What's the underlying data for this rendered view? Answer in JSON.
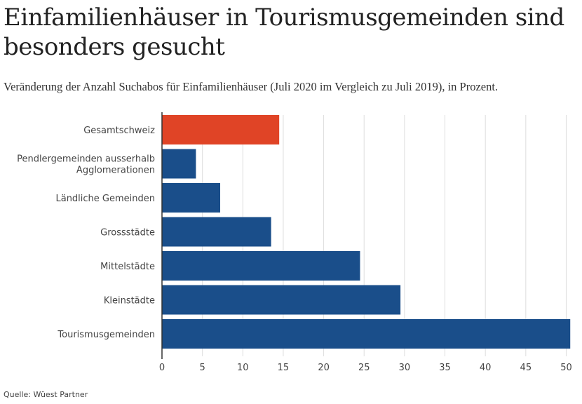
{
  "header": {
    "title_line1": "Einfamilienhäuser in Tourismusgemeinden sind",
    "title_line2": "besonders gesucht",
    "subtitle": "Veränderung der Anzahl Suchabos für Einfamilienhäuser (Juli 2020 im Vergleich zu Juli 2019), in Prozent."
  },
  "footer": {
    "source": "Quelle: Wüest Partner"
  },
  "colors": {
    "highlight": "#e04426",
    "bar": "#1a4e8a",
    "grid": "#dddddd",
    "axis": "#333333"
  },
  "chart_data": {
    "type": "bar",
    "orientation": "horizontal",
    "categories": [
      [
        "Gesamtschweiz"
      ],
      [
        "Pendlergemeinden ausserhalb",
        "Agglomerationen"
      ],
      [
        "Ländliche Gemeinden"
      ],
      [
        "Grossstädte"
      ],
      [
        "Mittelstädte"
      ],
      [
        "Kleinstädte"
      ],
      [
        "Tourismusgemeinden"
      ]
    ],
    "values": [
      14.5,
      4.2,
      7.2,
      13.5,
      24.5,
      29.5,
      50.5
    ],
    "highlight_index": 0,
    "xlim": [
      0,
      51
    ],
    "xticks": [
      0,
      5,
      10,
      15,
      20,
      25,
      30,
      35,
      40,
      45,
      50
    ],
    "grid": true
  }
}
